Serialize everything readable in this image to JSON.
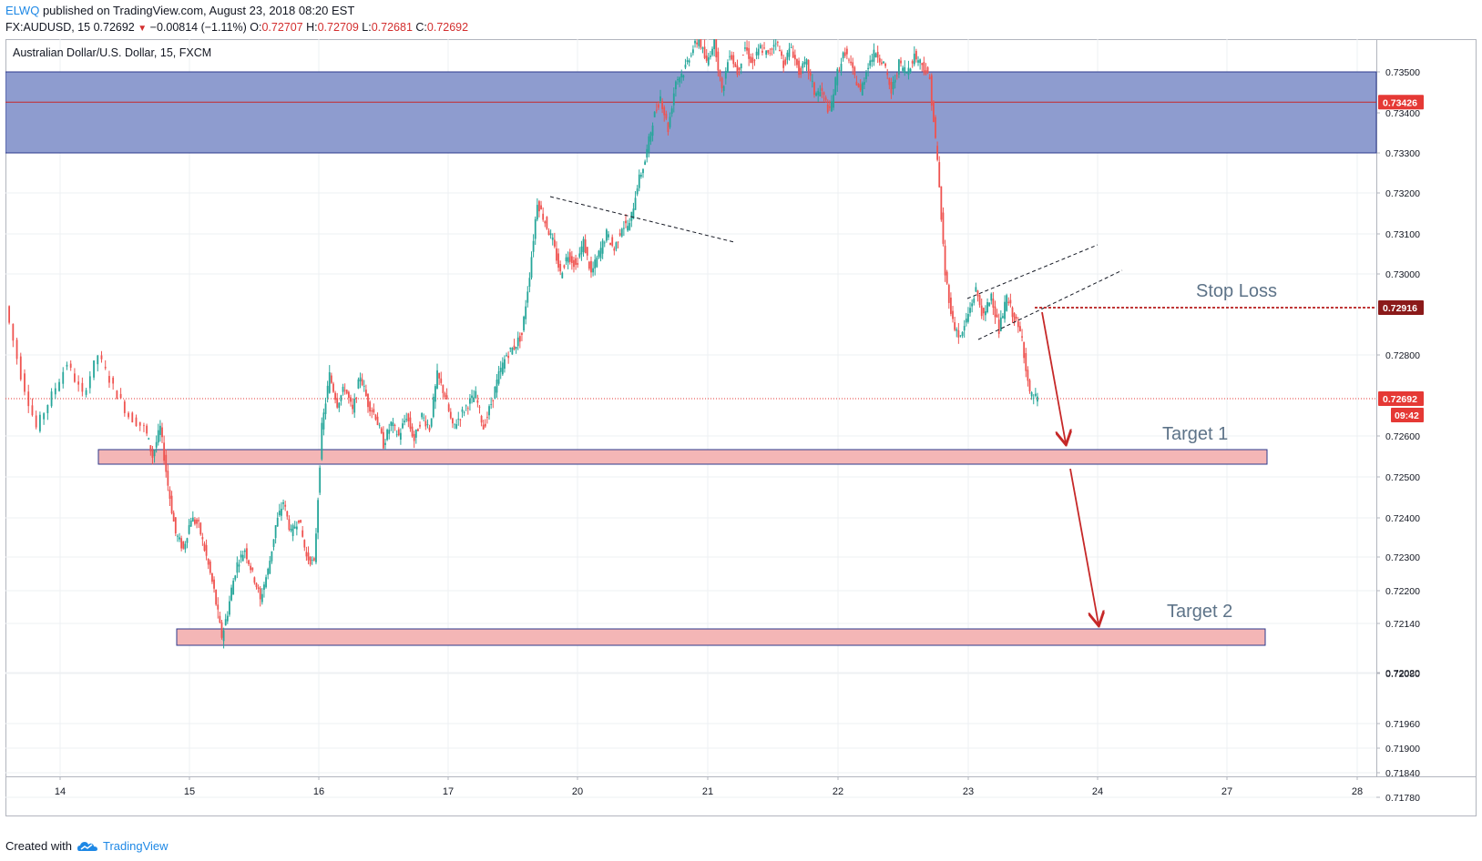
{
  "header": {
    "user": "ELWQ",
    "published_text": "published on TradingView.com, August 23, 2018 08:20 EST",
    "symbol": "FX:AUDUSD, 15",
    "last": "0.72692",
    "change": "−0.00814 (−1.11%)",
    "o_label": "O:",
    "o_value": "0.72707",
    "h_label": "H:",
    "h_value": "0.72709",
    "l_label": "L:",
    "l_value": "0.72681",
    "c_label": "C:",
    "c_value": "0.72692"
  },
  "footer": {
    "created_with": "Created with",
    "brand": "TradingView"
  },
  "colors": {
    "up": "#26a69a",
    "down": "#ef5350",
    "resistance_zone": "#8e9ccf",
    "support_zone": "#f4b6b6",
    "accent_red": "#d32f2f",
    "stop_loss_tag": "#8b1a1a",
    "annotation_text": "#5d7388"
  },
  "chart_data": {
    "type": "candlestick",
    "title": "Australian Dollar/U.S. Dollar, 15, FXCM",
    "x_ticks": [
      "14",
      "15",
      "16",
      "17",
      "20",
      "21",
      "22",
      "23",
      "24",
      "27",
      "28"
    ],
    "y_ticks": [
      "0.73500",
      "0.73400",
      "0.73300",
      "0.73200",
      "0.73100",
      "0.73000",
      "0.72800",
      "0.72600",
      "0.72500",
      "0.72400",
      "0.72300",
      "0.72200",
      "0.72140",
      "0.72080",
      "0.72020",
      "0.71960",
      "0.71900",
      "0.71840",
      "0.71780"
    ],
    "price_tags": [
      {
        "value": "0.73426",
        "role": "resistance-mid"
      },
      {
        "value": "0.72916",
        "role": "stop-loss"
      },
      {
        "value": "0.72692",
        "role": "last-price"
      }
    ],
    "countdown": "09:42",
    "zones": [
      {
        "name": "resistance",
        "from": 0.733,
        "to": 0.735,
        "mid": 0.73426
      },
      {
        "name": "target-1",
        "from": 0.7255,
        "to": 0.7258
      },
      {
        "name": "target-2",
        "from": 0.7209,
        "to": 0.7212
      }
    ],
    "annotations": [
      "Stop Loss",
      "Target 1",
      "Target 2"
    ],
    "price_path": [
      [
        0,
        0.7292
      ],
      [
        2,
        0.7275
      ],
      [
        4,
        0.7262
      ],
      [
        6,
        0.727
      ],
      [
        8,
        0.7278
      ],
      [
        10,
        0.727
      ],
      [
        12,
        0.728
      ],
      [
        14,
        0.7272
      ],
      [
        16,
        0.7265
      ],
      [
        18,
        0.7262
      ],
      [
        19,
        0.7255
      ],
      [
        20,
        0.7262
      ],
      [
        21,
        0.7248
      ],
      [
        22,
        0.7236
      ],
      [
        23,
        0.7232
      ],
      [
        24,
        0.724
      ],
      [
        25,
        0.7238
      ],
      [
        26,
        0.723
      ],
      [
        27,
        0.722
      ],
      [
        28,
        0.7211
      ],
      [
        29,
        0.7218
      ],
      [
        30,
        0.7228
      ],
      [
        31,
        0.7232
      ],
      [
        32,
        0.7225
      ],
      [
        33,
        0.7218
      ],
      [
        34,
        0.7226
      ],
      [
        35,
        0.7238
      ],
      [
        36,
        0.7244
      ],
      [
        37,
        0.7236
      ],
      [
        38,
        0.724
      ],
      [
        39,
        0.723
      ],
      [
        40,
        0.7228
      ],
      [
        41,
        0.7262
      ],
      [
        42,
        0.7275
      ],
      [
        43,
        0.7268
      ],
      [
        44,
        0.7272
      ],
      [
        45,
        0.7266
      ],
      [
        46,
        0.7275
      ],
      [
        47,
        0.7268
      ],
      [
        48,
        0.7265
      ],
      [
        49,
        0.7258
      ],
      [
        50,
        0.7263
      ],
      [
        51,
        0.726
      ],
      [
        52,
        0.7265
      ],
      [
        53,
        0.7259
      ],
      [
        54,
        0.7265
      ],
      [
        55,
        0.7262
      ],
      [
        56,
        0.7275
      ],
      [
        57,
        0.727
      ],
      [
        58,
        0.7262
      ],
      [
        59,
        0.7265
      ],
      [
        60,
        0.7268
      ],
      [
        61,
        0.727
      ],
      [
        62,
        0.7262
      ],
      [
        63,
        0.7268
      ],
      [
        64,
        0.7275
      ],
      [
        65,
        0.728
      ],
      [
        66,
        0.7282
      ],
      [
        67,
        0.7285
      ],
      [
        68,
        0.73
      ],
      [
        69,
        0.7318
      ],
      [
        70,
        0.7313
      ],
      [
        71,
        0.7308
      ],
      [
        72,
        0.73
      ],
      [
        73,
        0.7305
      ],
      [
        74,
        0.7302
      ],
      [
        75,
        0.7308
      ],
      [
        76,
        0.73
      ],
      [
        77,
        0.7305
      ],
      [
        78,
        0.731
      ],
      [
        79,
        0.7306
      ],
      [
        80,
        0.7312
      ],
      [
        81,
        0.7312
      ],
      [
        82,
        0.7322
      ],
      [
        83,
        0.7328
      ],
      [
        84,
        0.7338
      ],
      [
        85,
        0.7344
      ],
      [
        86,
        0.7336
      ],
      [
        87,
        0.7348
      ],
      [
        88,
        0.735
      ],
      [
        89,
        0.7355
      ],
      [
        90,
        0.7358
      ],
      [
        91,
        0.7352
      ],
      [
        92,
        0.7358
      ],
      [
        93,
        0.7345
      ],
      [
        94,
        0.7355
      ],
      [
        95,
        0.735
      ],
      [
        96,
        0.7356
      ],
      [
        97,
        0.7352
      ],
      [
        98,
        0.7356
      ],
      [
        99,
        0.7354
      ],
      [
        100,
        0.7358
      ],
      [
        101,
        0.7352
      ],
      [
        102,
        0.7356
      ],
      [
        103,
        0.735
      ],
      [
        104,
        0.7352
      ],
      [
        105,
        0.7345
      ],
      [
        106,
        0.7345
      ],
      [
        107,
        0.734
      ],
      [
        108,
        0.735
      ],
      [
        109,
        0.7355
      ],
      [
        110,
        0.735
      ],
      [
        111,
        0.7345
      ],
      [
        112,
        0.7352
      ],
      [
        113,
        0.7355
      ],
      [
        114,
        0.7352
      ],
      [
        115,
        0.7345
      ],
      [
        116,
        0.7352
      ],
      [
        117,
        0.735
      ],
      [
        118,
        0.7354
      ],
      [
        119,
        0.7352
      ],
      [
        120,
        0.7348
      ],
      [
        121,
        0.7328
      ],
      [
        122,
        0.73
      ],
      [
        123,
        0.7288
      ],
      [
        124,
        0.7284
      ],
      [
        125,
        0.729
      ],
      [
        126,
        0.7296
      ],
      [
        127,
        0.7289
      ],
      [
        128,
        0.7295
      ],
      [
        129,
        0.7286
      ],
      [
        130,
        0.7294
      ],
      [
        131,
        0.7289
      ],
      [
        132,
        0.7284
      ],
      [
        133,
        0.727
      ],
      [
        134,
        0.7269
      ]
    ],
    "dates": [
      "14",
      "15",
      "16",
      "17",
      "20",
      "21",
      "22",
      "23",
      "24",
      "27",
      "28"
    ]
  }
}
